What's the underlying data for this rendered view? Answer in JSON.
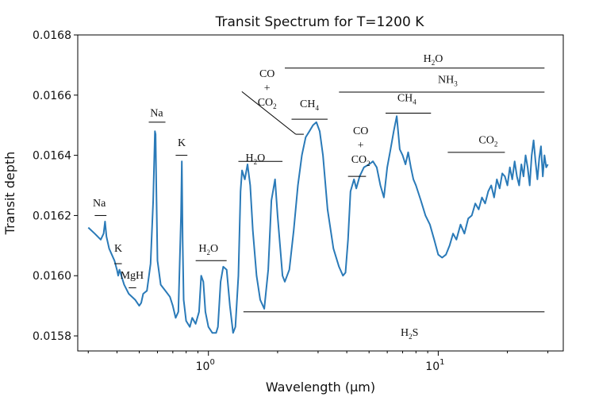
{
  "chart_data": {
    "type": "line",
    "title": "Transit Spectrum for T=1200 K",
    "xlabel": "Wavelength (μm)",
    "ylabel": "Transit depth",
    "xscale": "log",
    "xlim": [
      0.27,
      35
    ],
    "ylim": [
      0.01575,
      0.0168
    ],
    "grid": false,
    "yticks": [
      {
        "value": 0.0158,
        "label": "0.0158"
      },
      {
        "value": 0.016,
        "label": "0.0160"
      },
      {
        "value": 0.0162,
        "label": "0.0162"
      },
      {
        "value": 0.0164,
        "label": "0.0164"
      },
      {
        "value": 0.0166,
        "label": "0.0166"
      },
      {
        "value": 0.0168,
        "label": "0.0168"
      }
    ],
    "xticks_major": [
      {
        "value": 1,
        "base": "10",
        "exp": "0"
      },
      {
        "value": 10,
        "base": "10",
        "exp": "1"
      }
    ],
    "xticks_minor": [
      0.3,
      0.4,
      0.5,
      0.6,
      0.7,
      0.8,
      0.9,
      2,
      3,
      4,
      5,
      6,
      7,
      8,
      9,
      20,
      30
    ],
    "series": [
      {
        "color": "#2a7ab8",
        "x": [
          0.3,
          0.32,
          0.34,
          0.35,
          0.355,
          0.36,
          0.37,
          0.39,
          0.4,
          0.405,
          0.41,
          0.43,
          0.45,
          0.48,
          0.5,
          0.51,
          0.52,
          0.54,
          0.56,
          0.575,
          0.585,
          0.589,
          0.593,
          0.6,
          0.62,
          0.65,
          0.68,
          0.7,
          0.72,
          0.74,
          0.76,
          0.766,
          0.772,
          0.78,
          0.8,
          0.83,
          0.85,
          0.88,
          0.91,
          0.93,
          0.95,
          0.97,
          1.0,
          1.04,
          1.08,
          1.1,
          1.13,
          1.16,
          1.2,
          1.24,
          1.28,
          1.31,
          1.35,
          1.38,
          1.4,
          1.44,
          1.48,
          1.52,
          1.56,
          1.62,
          1.68,
          1.75,
          1.82,
          1.88,
          1.95,
          2.0,
          2.05,
          2.1,
          2.15,
          2.25,
          2.35,
          2.45,
          2.55,
          2.65,
          2.75,
          2.85,
          2.95,
          3.05,
          3.15,
          3.3,
          3.5,
          3.7,
          3.85,
          3.95,
          4.05,
          4.15,
          4.3,
          4.4,
          4.55,
          4.75,
          5.0,
          5.2,
          5.4,
          5.6,
          5.8,
          6.0,
          6.2,
          6.4,
          6.6,
          6.8,
          7.0,
          7.2,
          7.4,
          7.6,
          7.8,
          8.0,
          8.4,
          8.8,
          9.2,
          9.6,
          10.0,
          10.4,
          10.8,
          11.2,
          11.6,
          12.0,
          12.5,
          13.0,
          13.5,
          14.0,
          14.5,
          15.0,
          15.5,
          16.0,
          16.5,
          17.0,
          17.5,
          18.0,
          18.5,
          19.0,
          19.5,
          20.0,
          20.5,
          21.0,
          21.5,
          22.0,
          22.5,
          23.0,
          23.5,
          24.0,
          24.5,
          25.0,
          25.5,
          26.0,
          26.5,
          27.0,
          27.5,
          28.0,
          28.5,
          29.0,
          29.5,
          30.0
        ],
        "y": [
          0.01616,
          0.01614,
          0.01612,
          0.01614,
          0.01618,
          0.01613,
          0.01609,
          0.01605,
          0.01602,
          0.016,
          0.01602,
          0.01597,
          0.01594,
          0.01592,
          0.0159,
          0.01591,
          0.01594,
          0.01595,
          0.01604,
          0.01625,
          0.01648,
          0.01647,
          0.0163,
          0.01605,
          0.01597,
          0.01595,
          0.01593,
          0.0159,
          0.01586,
          0.01588,
          0.0162,
          0.01638,
          0.01612,
          0.01592,
          0.01585,
          0.01583,
          0.01586,
          0.01584,
          0.01588,
          0.016,
          0.01598,
          0.01588,
          0.01583,
          0.01581,
          0.01581,
          0.01583,
          0.01598,
          0.01603,
          0.01602,
          0.0159,
          0.01581,
          0.01583,
          0.016,
          0.01628,
          0.01635,
          0.01632,
          0.01637,
          0.0163,
          0.01615,
          0.016,
          0.01592,
          0.01589,
          0.01602,
          0.01625,
          0.01632,
          0.0162,
          0.0161,
          0.016,
          0.01598,
          0.01602,
          0.01615,
          0.0163,
          0.0164,
          0.01646,
          0.01648,
          0.0165,
          0.01651,
          0.01648,
          0.0164,
          0.01622,
          0.01609,
          0.01603,
          0.016,
          0.01601,
          0.01612,
          0.01628,
          0.01632,
          0.01629,
          0.01633,
          0.01636,
          0.01637,
          0.01638,
          0.01636,
          0.0163,
          0.01626,
          0.01636,
          0.01642,
          0.01648,
          0.01653,
          0.01642,
          0.0164,
          0.01637,
          0.01641,
          0.01636,
          0.01632,
          0.0163,
          0.01625,
          0.0162,
          0.01617,
          0.01612,
          0.01607,
          0.01606,
          0.01607,
          0.0161,
          0.01614,
          0.01612,
          0.01617,
          0.01614,
          0.01619,
          0.0162,
          0.01624,
          0.01622,
          0.01626,
          0.01624,
          0.01628,
          0.0163,
          0.01626,
          0.01632,
          0.01629,
          0.01634,
          0.01633,
          0.0163,
          0.01636,
          0.01632,
          0.01638,
          0.01633,
          0.0163,
          0.01637,
          0.01633,
          0.0164,
          0.01636,
          0.0163,
          0.0164,
          0.01645,
          0.01638,
          0.01632,
          0.01639,
          0.01643,
          0.01633,
          0.0164,
          0.01636,
          0.01637
        ]
      }
    ],
    "annotations": [
      {
        "text": "Na",
        "sub": "",
        "x": 0.335,
        "y": 0.01623,
        "line": [
          0.32,
          0.36,
          0.0162
        ]
      },
      {
        "text": "K",
        "sub": "",
        "x": 0.405,
        "y": 0.01608,
        "line": [
          0.39,
          0.42,
          0.01604
        ]
      },
      {
        "text": "MgH",
        "sub": "",
        "x": 0.465,
        "y": 0.01599,
        "line": [
          0.45,
          0.485,
          0.01596
        ]
      },
      {
        "text": "Na",
        "sub": "",
        "x": 0.595,
        "y": 0.01653,
        "line": [
          0.55,
          0.65,
          0.01651
        ]
      },
      {
        "text": "K",
        "sub": "",
        "x": 0.765,
        "y": 0.01643,
        "line": [
          0.72,
          0.81,
          0.0164
        ]
      },
      {
        "text": "H",
        "sub": "2",
        "suffix": "O",
        "x": 1.0,
        "y": 0.01608,
        "line": [
          0.88,
          1.2,
          0.01605
        ]
      },
      {
        "text": "H",
        "sub": "2",
        "suffix": "O",
        "x": 1.6,
        "y": 0.01638,
        "line": [
          1.35,
          2.1,
          0.01638
        ]
      },
      {
        "text": "CH",
        "sub": "4",
        "x": 2.75,
        "y": 0.01656,
        "line": [
          2.3,
          3.3,
          0.01652
        ]
      },
      {
        "text": "CH",
        "sub": "4",
        "x": 7.3,
        "y": 0.01658,
        "line": [
          5.9,
          9.3,
          0.01654
        ]
      },
      {
        "text": "CO",
        "sub": "2",
        "x": 16.5,
        "y": 0.01644,
        "line": [
          11.0,
          19.5,
          0.01641
        ]
      },
      {
        "text": "H",
        "sub": "2",
        "suffix": "O",
        "x": 9.5,
        "y": 0.01671,
        "line": [
          2.15,
          29.0,
          0.01669
        ]
      },
      {
        "text": "NH",
        "sub": "3",
        "x": 11.0,
        "y": 0.01664,
        "line": [
          3.7,
          29.0,
          0.01661
        ]
      },
      {
        "text": "H",
        "sub": "2",
        "suffix": "S",
        "x": 7.5,
        "y": 0.0158,
        "line": [
          1.42,
          29.0,
          0.01588
        ]
      }
    ],
    "stacked_annotations": [
      {
        "lines": [
          "CO",
          "+",
          "CO"
        ],
        "sub": "2",
        "x": 1.8,
        "y": 0.01666,
        "line": [
          1.35,
          2.1,
          0.01638
        ],
        "pointer": [
          2.08,
          0.01658,
          2.4,
          0.01647
        ],
        "tick": [
          2.4,
          2.6,
          0.01647
        ]
      },
      {
        "lines": [
          "CO",
          "+",
          "CO"
        ],
        "sub": "2",
        "x": 4.6,
        "y": 0.01647,
        "tick": [
          4.05,
          4.85,
          0.01633
        ]
      }
    ]
  }
}
